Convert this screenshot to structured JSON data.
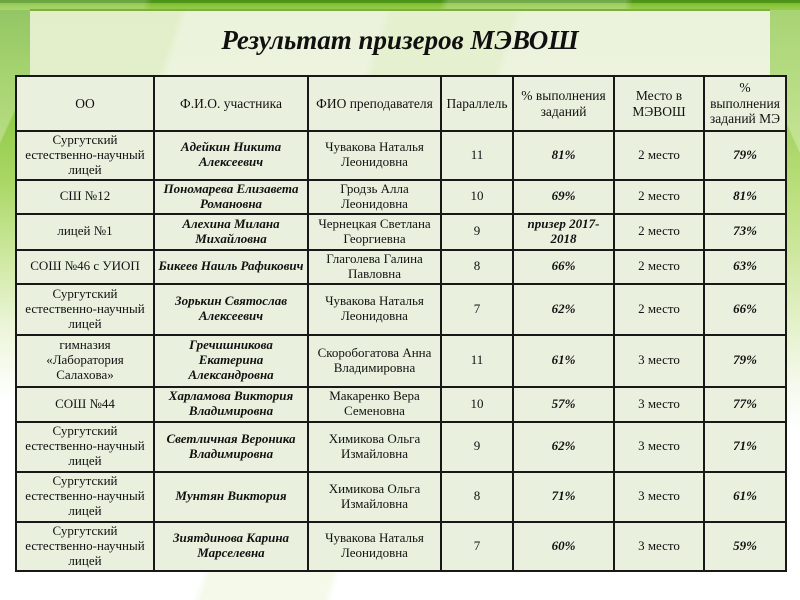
{
  "slide": {
    "title": "Результат призеров МЭВОШ"
  },
  "colors": {
    "accent_green": "#8cc63f",
    "dark_green_edge": "#4c9317",
    "panel_bg": "#eef4e1",
    "cell_bg": "#e9f1de",
    "table_border": "#181818",
    "text": "#111111"
  },
  "table": {
    "columns": [
      "ОО",
      "Ф.И.О. участника",
      "ФИО преподавателя",
      "Параллель",
      "% выполнения заданий",
      "Место в МЭВОШ",
      "% выполнения заданий МЭ"
    ],
    "rows": [
      [
        "Сургутский естественно-научный лицей",
        "Адейкин Никита Алексеевич",
        "Чувакова Наталья Леонидовна",
        "11",
        "81%",
        "2 место",
        "79%"
      ],
      [
        "СШ №12",
        "Пономарева Елизавета Романовна",
        "Гродзь Алла Леонидовна",
        "10",
        "69%",
        "2 место",
        "81%"
      ],
      [
        "лицей №1",
        "Алехина Милана Михайловна",
        "Чернецкая Светлана Георгиевна",
        "9",
        "призер 2017-2018",
        "2 место",
        "73%"
      ],
      [
        "СОШ №46 с УИОП",
        "Бикеев Наиль Рафикович",
        "Глаголева Галина Павловна",
        "8",
        "66%",
        "2 место",
        "63%"
      ],
      [
        "Сургутский естественно-научный лицей",
        "Зорькин Святослав Алексеевич",
        "Чувакова Наталья Леонидовна",
        "7",
        "62%",
        "2 место",
        "66%"
      ],
      [
        "гимназия «Лаборатория Салахова»",
        "Гречишникова Екатерина Александровна",
        "Скоробогатова Анна Владимировна",
        "11",
        "61%",
        "3 место",
        "79%"
      ],
      [
        "СОШ №44",
        "Харламова Виктория Владимировна",
        "Макаренко Вера Семеновна",
        "10",
        "57%",
        "3 место",
        "77%"
      ],
      [
        "Сургутский естественно-научный лицей",
        "Светличная Вероника Владимировна",
        "Химикова Ольга Измайловна",
        "9",
        "62%",
        "3 место",
        "71%"
      ],
      [
        "Сургутский естественно-научный лицей",
        "Мунтян Виктория",
        "Химикова Ольга Измайловна",
        "8",
        "71%",
        "3 место",
        "61%"
      ],
      [
        "Сургутский естественно-научный лицей",
        "Зиятдинова Карина Марселевна",
        "Чувакова Наталья Леонидовна",
        "7",
        "60%",
        "3 место",
        "59%"
      ]
    ]
  }
}
